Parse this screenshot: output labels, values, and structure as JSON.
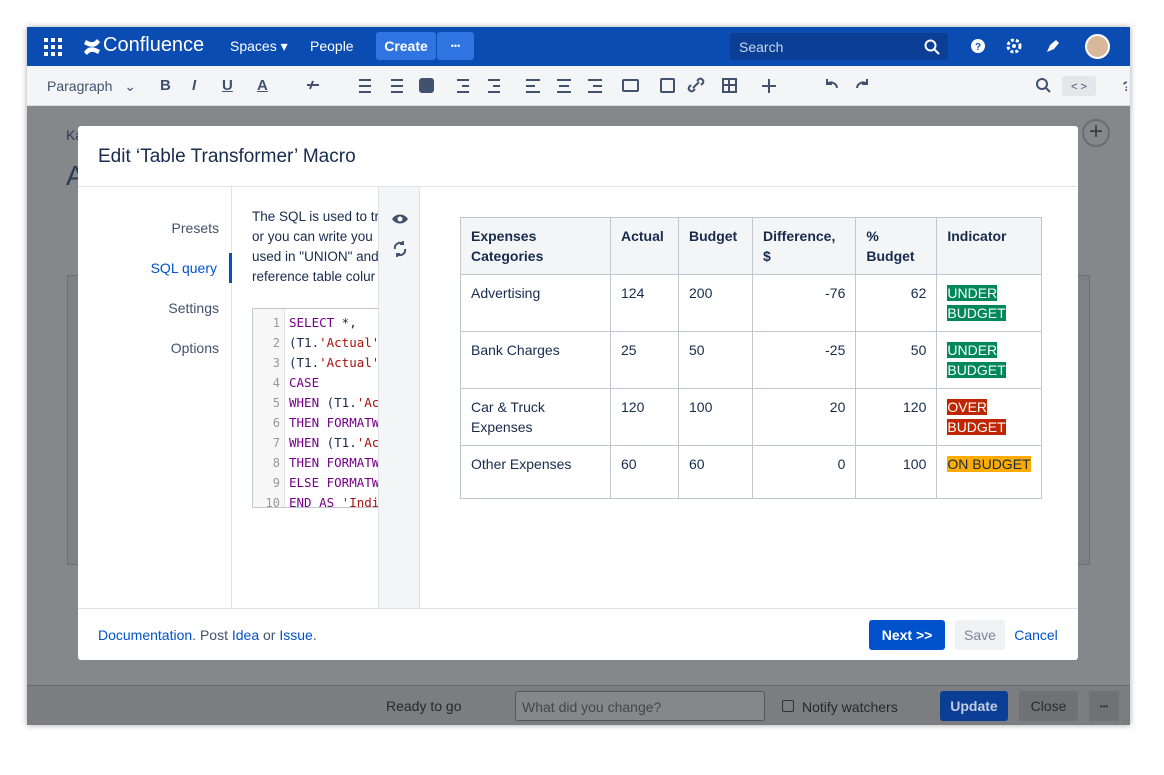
{
  "topbar": {
    "logo": "Confluence",
    "nav": [
      "Spaces",
      "People"
    ],
    "create": "Create",
    "more": "•••",
    "search": "Search"
  },
  "toolbar": {
    "paragraph": "Paragraph",
    "format": [
      "B",
      "I",
      "U",
      "A"
    ]
  },
  "page": {
    "breadcrumb": "Ka",
    "title": "A"
  },
  "dialog": {
    "title": "Edit ‘Table Transformer’ Macro",
    "menu": [
      "Presets",
      "SQL query",
      "Settings",
      "Options"
    ],
    "selected": 1,
    "description": [
      "The SQL is used to tr",
      "or you can write you",
      "used in \"UNION\" and",
      "reference table colur"
    ],
    "code": [
      {
        "n": "1",
        "parts": [
          {
            "t": "SELECT",
            "color": "#770088"
          },
          {
            "t": " *,",
            "color": "#172b4d"
          }
        ]
      },
      {
        "n": "2",
        "parts": [
          {
            "t": "(T1.",
            "color": "#172b4d"
          },
          {
            "t": "'Actual'",
            "color": "#aa1111"
          }
        ]
      },
      {
        "n": "3",
        "parts": [
          {
            "t": "(T1.",
            "color": "#172b4d"
          },
          {
            "t": "'Actual'",
            "color": "#aa1111"
          }
        ]
      },
      {
        "n": "4",
        "parts": [
          {
            "t": "CASE",
            "color": "#770088"
          }
        ]
      },
      {
        "n": "5",
        "parts": [
          {
            "t": "WHEN",
            "color": "#770088"
          },
          {
            "t": " (T1.",
            "color": "#172b4d"
          },
          {
            "t": "'Ac",
            "color": "#aa1111"
          }
        ]
      },
      {
        "n": "6",
        "parts": [
          {
            "t": "THEN",
            "color": "#770088"
          },
          {
            "t": " FORMATW",
            "color": "#770088"
          }
        ]
      },
      {
        "n": "7",
        "parts": [
          {
            "t": "WHEN",
            "color": "#770088"
          },
          {
            "t": " (T1.",
            "color": "#172b4d"
          },
          {
            "t": "'Ac",
            "color": "#aa1111"
          }
        ]
      },
      {
        "n": "8",
        "parts": [
          {
            "t": "THEN",
            "color": "#770088"
          },
          {
            "t": " FORMATW",
            "color": "#770088"
          }
        ]
      },
      {
        "n": "9",
        "parts": [
          {
            "t": "ELSE",
            "color": "#770088"
          },
          {
            "t": " FORMATW",
            "color": "#770088"
          }
        ]
      },
      {
        "n": "10",
        "parts": [
          {
            "t": "END AS",
            "color": "#770088"
          },
          {
            "t": " 'Indi",
            "color": "#aa1111"
          }
        ]
      }
    ],
    "table": {
      "headers": [
        "Expenses Categories",
        "Actual",
        "Budget",
        "Difference, $",
        "% Budget",
        "Indicator"
      ],
      "rows": [
        [
          "Advertising",
          "124",
          "200",
          "-76",
          "62",
          {
            "label": "UNDER BUDGET",
            "color": "#00875a"
          }
        ],
        [
          "Bank Charges",
          "25",
          "50",
          "-25",
          "50",
          {
            "label": "UNDER BUDGET",
            "color": "#00875a"
          }
        ],
        [
          "Car & Truck Expenses",
          "120",
          "100",
          "20",
          "120",
          {
            "label": "OVER BUDGET",
            "color": "#bf2600"
          }
        ],
        [
          "Other Expenses",
          "60",
          "60",
          "0",
          "100",
          {
            "label": "ON BUDGET",
            "color": "#ffab00"
          }
        ]
      ]
    },
    "footer": {
      "links": [
        "Documentation",
        ". Post ",
        "Idea",
        " or ",
        "Issue",
        "."
      ],
      "next": "Next >>",
      "save": "Save",
      "cancel": "Cancel"
    }
  },
  "bottombar": {
    "status": "Ready to go",
    "placeholder": "What did you change?",
    "notify": "Notify watchers",
    "update": "Update",
    "close": "Close",
    "more": "•••"
  }
}
